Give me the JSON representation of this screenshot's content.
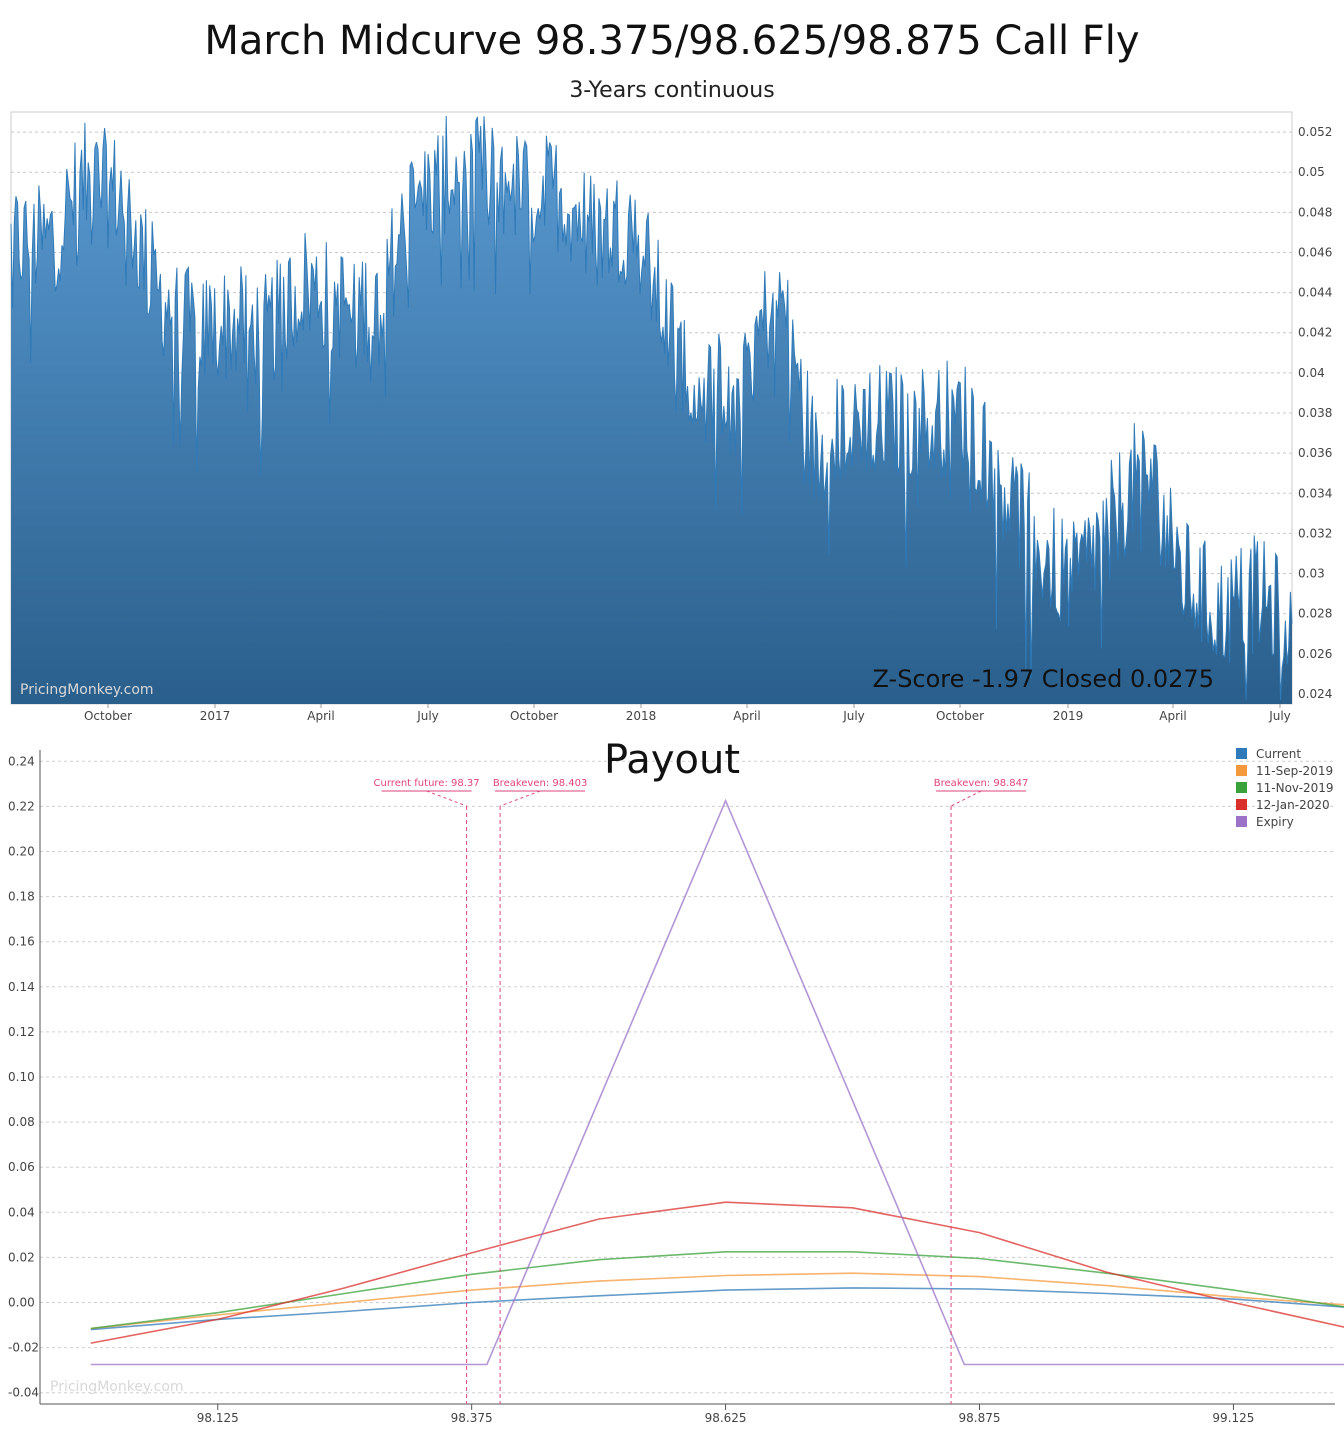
{
  "chart_data": [
    {
      "type": "area",
      "title": "March Midcurve 98.375/98.625/98.875 Call Fly",
      "subtitle": "3-Years continuous",
      "x_tick_labels": [
        "October",
        "2017",
        "April",
        "July",
        "October",
        "2018",
        "April",
        "July",
        "October",
        "2019",
        "April",
        "July"
      ],
      "y_tick_labels": [
        "0.024",
        "0.026",
        "0.028",
        "0.03",
        "0.032",
        "0.034",
        "0.036",
        "0.038",
        "0.04",
        "0.042",
        "0.044",
        "0.046",
        "0.048",
        "0.05",
        "0.052"
      ],
      "ylim": [
        0.0235,
        0.053
      ],
      "y_axis_position": "right",
      "grid": true,
      "watermark": "PricingMonkey.com",
      "annotation": "Z-Score -1.97 Closed 0.0275",
      "colors": {
        "fill_top": "#5a9bd3",
        "fill_bottom": "#2a5f8c",
        "line": "#2f7ab8"
      },
      "series": [
        {
          "x": [
            "2016-08",
            "2016-09",
            "2016-10",
            "2016-11",
            "2016-12",
            "2017-01",
            "2017-02",
            "2017-03",
            "2017-04",
            "2017-05",
            "2017-06",
            "2017-07",
            "2017-08",
            "2017-09",
            "2017-10",
            "2017-11",
            "2017-12",
            "2018-01",
            "2018-02",
            "2018-03",
            "2018-04",
            "2018-05",
            "2018-06",
            "2018-07",
            "2018-08",
            "2018-09",
            "2018-10",
            "2018-11",
            "2018-12",
            "2019-01",
            "2019-02",
            "2019-03",
            "2019-04",
            "2019-05",
            "2019-06",
            "2019-07"
          ],
          "values": [
            0.0465,
            0.0465,
            0.0495,
            0.049,
            0.044,
            0.042,
            0.0425,
            0.042,
            0.0445,
            0.0435,
            0.0435,
            0.0485,
            0.05,
            0.05,
            0.049,
            0.049,
            0.047,
            0.0475,
            0.042,
            0.039,
            0.0405,
            0.044,
            0.0355,
            0.038,
            0.0375,
            0.0375,
            0.038,
            0.035,
            0.0315,
            0.0295,
            0.0325,
            0.0355,
            0.03,
            0.028,
            0.029,
            0.0275
          ]
        }
      ]
    },
    {
      "type": "line",
      "title": "Payout",
      "x_tick_labels": [
        "98.125",
        "98.375",
        "98.625",
        "98.875",
        "99.125"
      ],
      "xlim": [
        97.95,
        99.225
      ],
      "y_tick_labels": [
        "-0.04",
        "-0.02",
        "0.00",
        "0.02",
        "0.04",
        "0.06",
        "0.08",
        "0.10",
        "0.12",
        "0.14",
        "0.16",
        "0.18",
        "0.20",
        "0.22",
        "0.24"
      ],
      "ylim": [
        -0.045,
        0.245
      ],
      "grid": true,
      "legend_position": "top-right",
      "watermark": "PricingMonkey.com",
      "x": [
        98.0,
        98.125,
        98.25,
        98.375,
        98.5,
        98.625,
        98.75,
        98.875,
        99.0,
        99.125,
        99.25
      ],
      "series": [
        {
          "name": "Current",
          "color": "#2f7ab8",
          "values": [
            -0.012,
            -0.0075,
            -0.004,
            0.0,
            0.003,
            0.0055,
            0.0065,
            0.006,
            0.004,
            0.0015,
            -0.0025
          ]
        },
        {
          "name": "11-Sep-2019",
          "color": "#f59a3c",
          "values": [
            -0.0115,
            -0.0055,
            0.0,
            0.0055,
            0.0095,
            0.012,
            0.013,
            0.0115,
            0.0075,
            0.0025,
            -0.0015
          ]
        },
        {
          "name": "11-Nov-2019",
          "color": "#3aa23a",
          "values": [
            -0.0115,
            -0.0045,
            0.004,
            0.0125,
            0.019,
            0.0225,
            0.0225,
            0.0195,
            0.013,
            0.0055,
            -0.003
          ]
        },
        {
          "name": "12-Jan-2020",
          "color": "#d9302c",
          "values": [
            -0.018,
            -0.0075,
            0.0065,
            0.022,
            0.037,
            0.0445,
            0.042,
            0.031,
            0.0135,
            0.0,
            -0.0125
          ]
        },
        {
          "name": "Expiry",
          "color": "#9b72c8",
          "values": [
            -0.0275,
            -0.0275,
            -0.0275,
            -0.0275,
            0.0975,
            0.2225,
            0.0975,
            -0.0275,
            -0.0275,
            -0.0275,
            -0.0275
          ]
        }
      ],
      "markers": [
        {
          "label": "Current future: 98.37",
          "x": 98.37
        },
        {
          "label": "Breakeven: 98.403",
          "x": 98.403
        },
        {
          "label": "Breakeven: 98.847",
          "x": 98.847
        }
      ],
      "marker_color": "#e0457b"
    }
  ]
}
